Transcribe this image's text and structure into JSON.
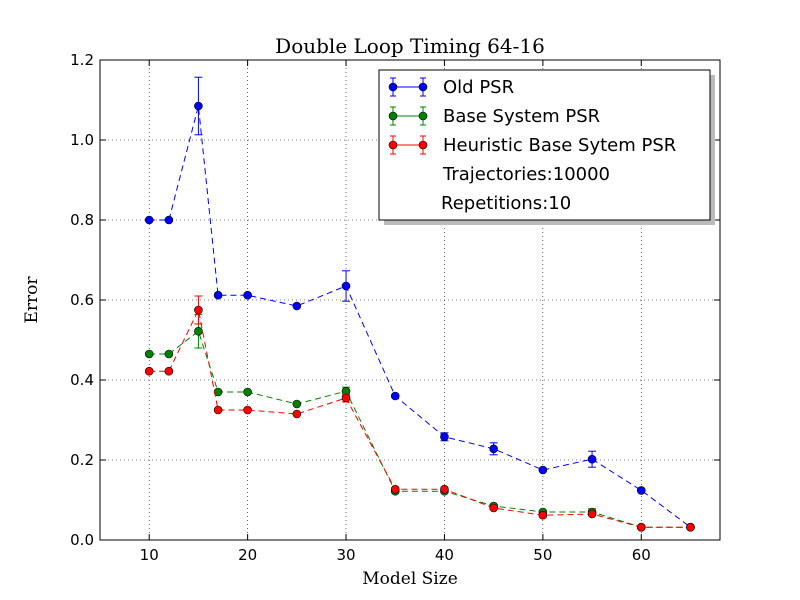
{
  "chart_data": {
    "type": "line",
    "title": "Double Loop Timing 64-16",
    "xlabel": "Model Size",
    "ylabel": "Error",
    "xlim": [
      5,
      68
    ],
    "ylim": [
      0.0,
      1.2
    ],
    "x_ticks": [
      10,
      20,
      30,
      40,
      50,
      60
    ],
    "y_ticks": [
      0.0,
      0.2,
      0.4,
      0.6,
      0.8,
      1.0,
      1.2
    ],
    "x_tick_labels": [
      "10",
      "20",
      "30",
      "40",
      "50",
      "60"
    ],
    "y_tick_labels": [
      "0.0",
      "0.2",
      "0.4",
      "0.6",
      "0.8",
      "1.0",
      "1.2"
    ],
    "grid": true,
    "legend_position": "top-right",
    "x": [
      10,
      12,
      15,
      17,
      20,
      25,
      30,
      35,
      40,
      45,
      50,
      55,
      60,
      65
    ],
    "series": [
      {
        "name": "Old PSR",
        "color": "#0000ff",
        "values": [
          0.8,
          0.8,
          1.085,
          0.612,
          0.612,
          0.585,
          0.635,
          0.36,
          0.258,
          0.228,
          0.175,
          0.202,
          0.124,
          0.032
        ],
        "errors": [
          0.0,
          0.0,
          0.072,
          0.0,
          0.0,
          0.0,
          0.038,
          0.0,
          0.01,
          0.015,
          0.0,
          0.02,
          0.0,
          0.0
        ]
      },
      {
        "name": "Base System PSR",
        "color": "#008000",
        "values": [
          0.465,
          0.465,
          0.522,
          0.37,
          0.37,
          0.34,
          0.372,
          0.122,
          0.122,
          0.085,
          0.07,
          0.07,
          0.032,
          0.032
        ],
        "errors": [
          0.0,
          0.0,
          0.042,
          0.0,
          0.0,
          0.0,
          0.01,
          0.0,
          0.0,
          0.0,
          0.0,
          0.008,
          0.0,
          0.0
        ]
      },
      {
        "name": "Heuristic Base Sytem PSR",
        "color": "#ff0000",
        "values": [
          0.422,
          0.422,
          0.575,
          0.325,
          0.325,
          0.315,
          0.355,
          0.127,
          0.127,
          0.08,
          0.062,
          0.065,
          0.032,
          0.032
        ],
        "errors": [
          0.0,
          0.0,
          0.035,
          0.0,
          0.0,
          0.0,
          0.01,
          0.0,
          0.0,
          0.0,
          0.0,
          0.0,
          0.0,
          0.0
        ]
      }
    ],
    "legend_notes": [
      "Trajectories:10000",
      "Repetitions:10"
    ]
  }
}
